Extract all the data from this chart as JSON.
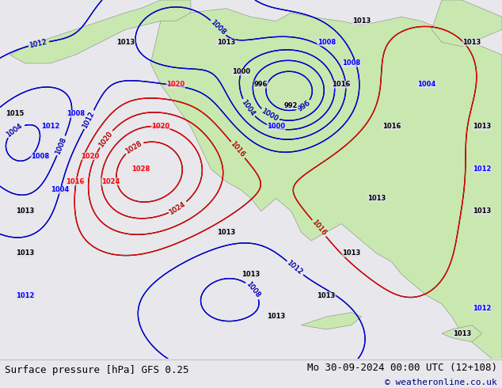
{
  "title_left": "Surface pressure [hPa] GFS 0.25",
  "title_right": "Mo 30-09-2024 00:00 UTC (12+108)",
  "copyright": "© weatheronline.co.uk",
  "bg_color": "#e8e8ec",
  "map_bg": "#e0e0e8",
  "ocean_color": "#e0e0ea",
  "land_color": "#c8e8b0",
  "land_edge": "#888888",
  "font_size_title": 9,
  "font_size_copyright": 8,
  "bottom_bar_color": "#e8e8ec"
}
